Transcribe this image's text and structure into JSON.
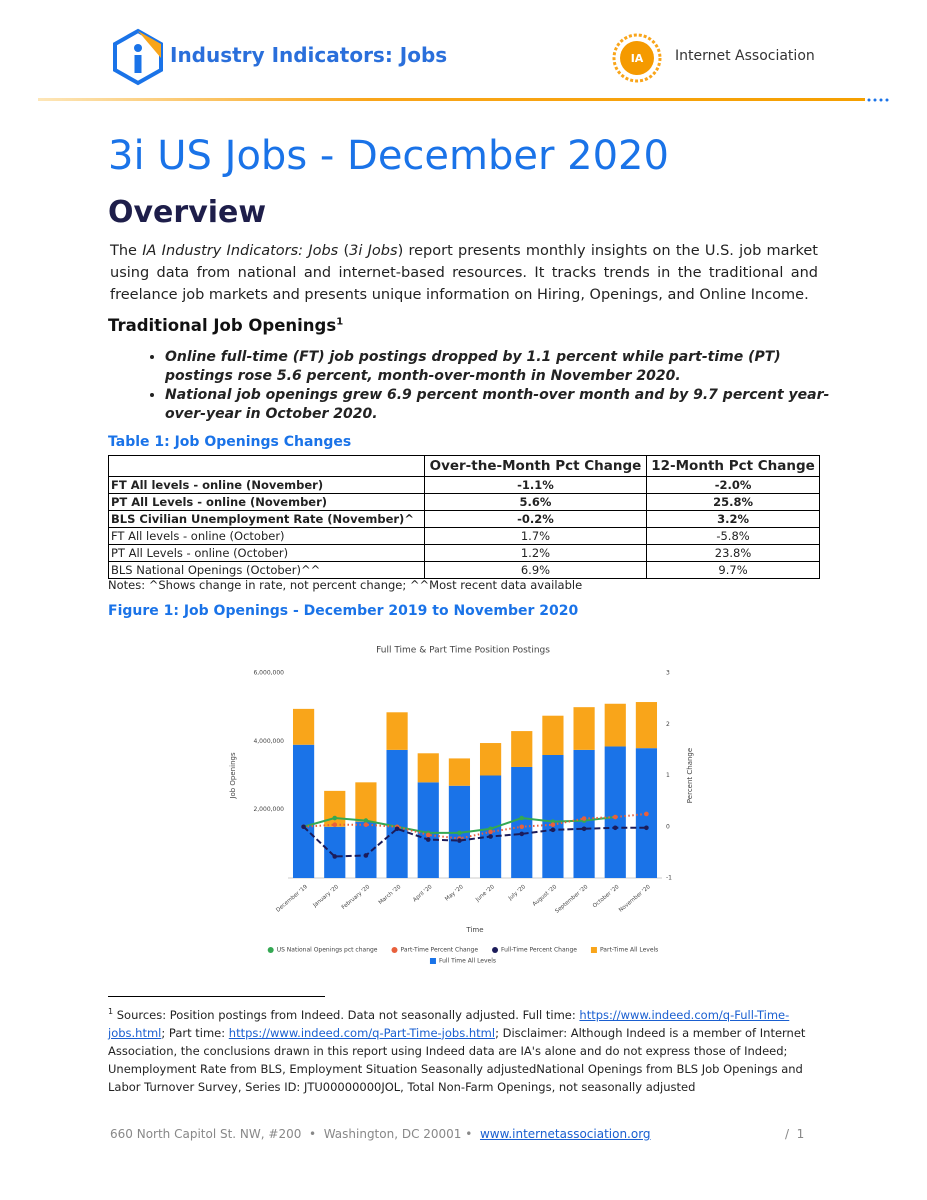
{
  "header": {
    "brand": "Industry Indicators: Jobs",
    "partner_logo": "IA",
    "partner": "Internet Association"
  },
  "title": "3i US Jobs - December 2020",
  "overview": {
    "heading": "Overview",
    "parts": [
      "The ",
      "IA Industry Indicators: Jobs",
      " (",
      "3i Jobs",
      ") report presents monthly insights on the U.S. job market using data from national and internet-based resources. It tracks trends in the traditional and freelance job markets and presents unique information on Hiring, Openings, and Online Income."
    ]
  },
  "section": {
    "heading": "Traditional Job Openings",
    "bullets": [
      "Online full-time (FT) job postings  dropped by 1.1 percent while part-time (PT) postings rose 5.6 percent, month-over-month in November 2020.",
      "National job openings grew 6.9 percent month-over month and by 9.7 percent year-over-year in October 2020."
    ]
  },
  "table": {
    "caption": "Table 1: Job Openings Changes",
    "columns": [
      "Over-the-Month Pct Change",
      "12-Month Pct Change"
    ],
    "rows": [
      [
        "FT All levels - online (November)",
        "-1.1%",
        "-2.0%"
      ],
      [
        "PT All Levels - online (November)",
        "5.6%",
        "25.8%"
      ],
      [
        "BLS Civilian Unemployment Rate (November)^",
        "-0.2%",
        "3.2%"
      ],
      [
        "FT All levels - online (October)",
        "1.7%",
        "-5.8%"
      ],
      [
        "PT All Levels - online (October)",
        "1.2%",
        "23.8%"
      ],
      [
        "BLS National Openings (October)^^",
        "6.9%",
        "9.7%"
      ]
    ],
    "notes": "Notes: ^Shows change in rate, not percent change; ^^Most recent data available"
  },
  "figure_caption": "Figure 1: Job Openings - December 2019 to November 2020",
  "chart_data": {
    "type": "bar",
    "stacked": true,
    "title": "Full Time & Part Time Position Postings",
    "xlabel": "Time",
    "ylabel": "Job Openings",
    "y2label": "Percent Change",
    "categories": [
      "December '19",
      "January '20",
      "February '20",
      "March '20",
      "April '20",
      "May '20",
      "June '20",
      "July '20",
      "August '20",
      "September '20",
      "October '20",
      "November '20"
    ],
    "ylim": [
      0,
      6000000
    ],
    "yticks": [
      {
        "value": 2000000,
        "label": "2,000,000"
      },
      {
        "value": 4000000,
        "label": "4,000,000"
      },
      {
        "value": 6000000,
        "label": "6,000,000"
      }
    ],
    "y2lim": [
      -1,
      3
    ],
    "y2ticks": [
      -1,
      0,
      1,
      2,
      3
    ],
    "series": [
      {
        "name": "US National Openings pct change",
        "type": "line",
        "axis": "y2",
        "color": "#34a853",
        "line_style": "solid",
        "values": [
          0,
          0.17,
          0.12,
          0,
          -0.12,
          -0.12,
          -0.04,
          0.17,
          0.1,
          0.12,
          0.19,
          null
        ]
      },
      {
        "name": "Part-Time Percent Change",
        "type": "line",
        "axis": "y2",
        "color": "#e8603c",
        "line_style": "dotted",
        "values": [
          0,
          0.04,
          0.04,
          0,
          -0.16,
          -0.23,
          -0.1,
          0,
          0.04,
          0.16,
          0.19,
          0.25
        ]
      },
      {
        "name": "Full-Time Percent Change",
        "type": "line",
        "axis": "y2",
        "color": "#1c1c5a",
        "line_style": "dashed",
        "values": [
          0,
          -0.58,
          -0.56,
          -0.04,
          -0.25,
          -0.27,
          -0.19,
          -0.14,
          -0.06,
          -0.04,
          -0.02,
          -0.02
        ]
      },
      {
        "name": "Part-Time All Levels",
        "type": "bar",
        "color": "#f9a51a",
        "values": [
          1050000,
          1050000,
          1150000,
          1100000,
          850000,
          800000,
          950000,
          1050000,
          1150000,
          1250000,
          1250000,
          1350000
        ]
      },
      {
        "name": "Full Time All Levels",
        "type": "bar",
        "color": "#1a73e8",
        "values": [
          3900000,
          1500000,
          1650000,
          3750000,
          2800000,
          2700000,
          3000000,
          3250000,
          3600000,
          3750000,
          3850000,
          3800000
        ]
      }
    ]
  },
  "footnote": {
    "marker": "1",
    "parts": [
      "Sources: Position postings from Indeed. Data not seasonally adjusted. Full time: ",
      "https://www.indeed.com/q-Full-Time-jobs.html",
      "; Part time: ",
      "https://www.indeed.com/q-Part-Time-jobs.html",
      "; Disclaimer: Although Indeed is a member of Internet Association, the conclusions drawn in this report using Indeed data are IA's alone and do not express those of Indeed; Unemployment Rate from BLS, Employment Situation Seasonally adjustedNational Openings from BLS Job Openings and Labor Turnover Survey, Series ID: JTU00000000JOL, Total Non-Farm Openings, not seasonally adjusted"
    ]
  },
  "footer": {
    "address": "660 North Capitol St. NW, #200  •  Washington, DC 20001 •",
    "link": "www.internetassociation.org",
    "page": "/  1"
  }
}
